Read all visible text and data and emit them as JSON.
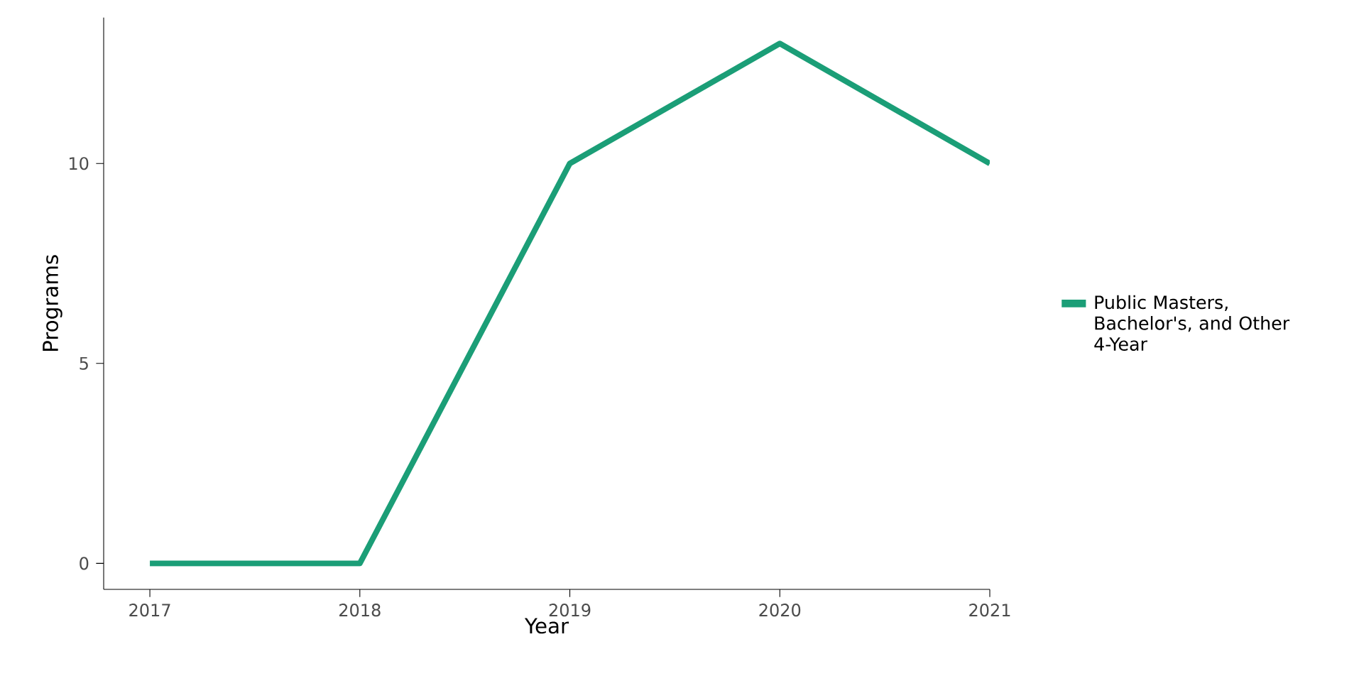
{
  "chart_data": {
    "type": "line",
    "xlabel": "Year",
    "ylabel": "Programs",
    "x": [
      2017,
      2018,
      2019,
      2020,
      2021
    ],
    "series": [
      {
        "name": "Public Masters, Bachelor's, and Other 4-Year",
        "color": "#1b9e77",
        "values": [
          0,
          0,
          10,
          13,
          10
        ]
      }
    ],
    "xlim": [
      2016.78,
      2021
    ],
    "ylim": [
      -0.65,
      13.65
    ],
    "xticks": [
      2017,
      2018,
      2019,
      2020,
      2021
    ],
    "yticks": [
      0,
      5,
      10
    ],
    "grid": false,
    "legend": "right",
    "marker": "none",
    "line_style": "solid"
  }
}
